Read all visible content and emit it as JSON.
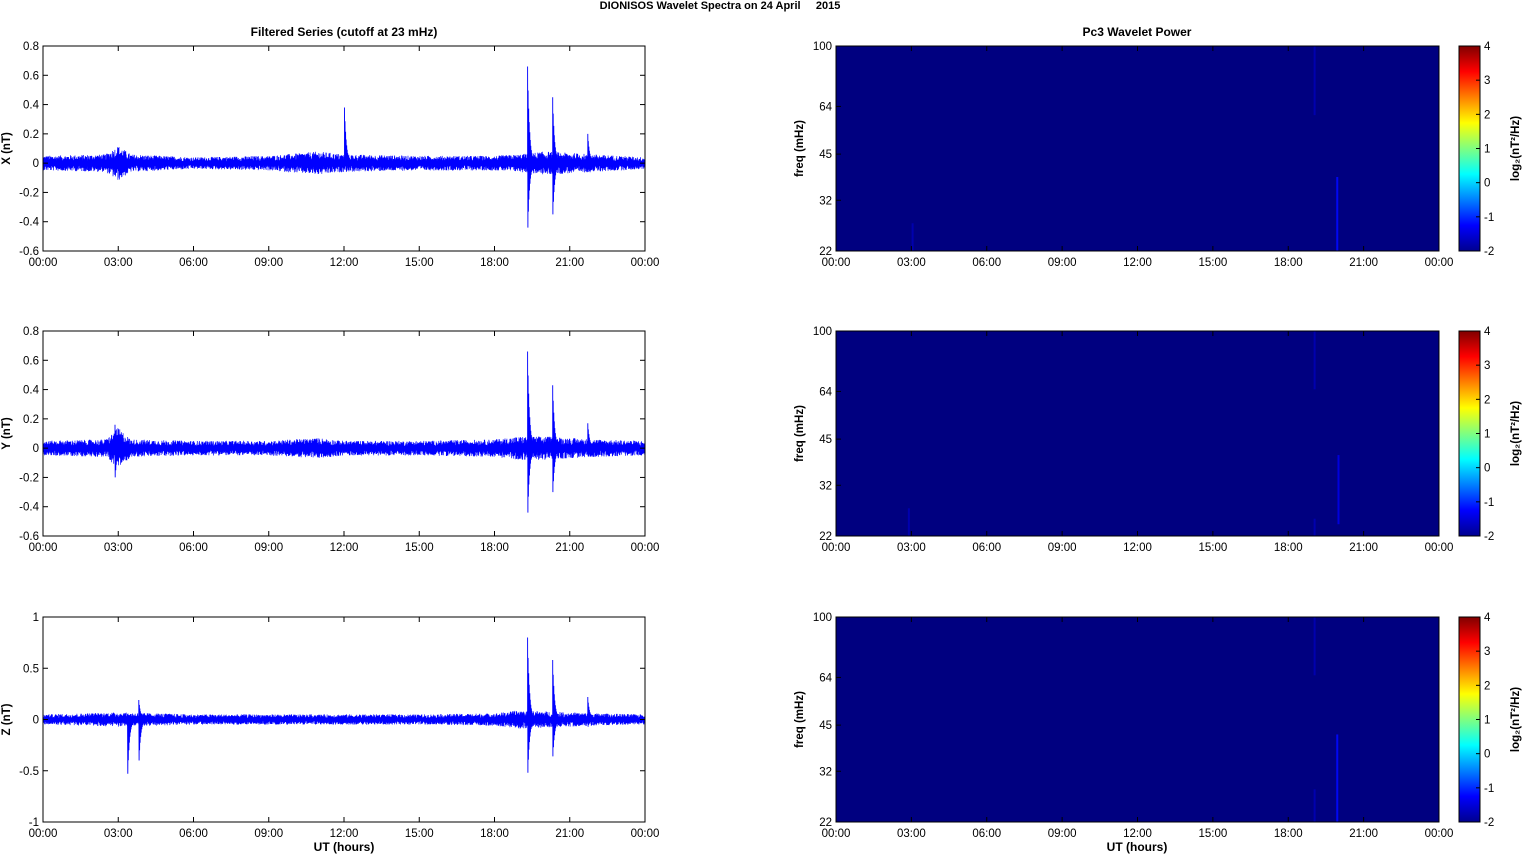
{
  "figure": {
    "title": "DIONISOS Wavelet Spectra on 24 April     2015",
    "left_title": "Filtered Series (cutoff at 23 mHz)",
    "right_title": "Pc3 Wavelet Power",
    "xlabel": "UT (hours)"
  },
  "chart_data": [
    {
      "type": "line",
      "panel": "series-x",
      "ylabel": "X (nT)",
      "xlim": [
        0,
        24
      ],
      "ylim": [
        -0.6,
        0.8
      ],
      "x_ticks": [
        "00:00",
        "03:00",
        "06:00",
        "09:00",
        "12:00",
        "15:00",
        "18:00",
        "21:00",
        "00:00"
      ],
      "y_ticks": [
        "0.8",
        "0.6",
        "0.4",
        "0.2",
        "0",
        "-0.2",
        "-0.4",
        "-0.6"
      ],
      "color": "#0000ff",
      "noise_envelope": [
        [
          0,
          0.05
        ],
        [
          2.5,
          0.06
        ],
        [
          3,
          0.12
        ],
        [
          3.5,
          0.06
        ],
        [
          6,
          0.04
        ],
        [
          9,
          0.05
        ],
        [
          11,
          0.08
        ],
        [
          12,
          0.06
        ],
        [
          15,
          0.05
        ],
        [
          18,
          0.05
        ],
        [
          19,
          0.06
        ],
        [
          20,
          0.08
        ],
        [
          22,
          0.06
        ],
        [
          24,
          0.04
        ]
      ],
      "spikes": [
        {
          "x": 12.1,
          "max": 0.38,
          "min": -0.02
        },
        {
          "x": 19.4,
          "max": 0.66,
          "min": -0.44
        },
        {
          "x": 20.4,
          "max": 0.45,
          "min": -0.35
        },
        {
          "x": 21.8,
          "max": 0.2,
          "min": -0.06
        }
      ]
    },
    {
      "type": "line",
      "panel": "series-y",
      "ylabel": "Y (nT)",
      "xlim": [
        0,
        24
      ],
      "ylim": [
        -0.6,
        0.8
      ],
      "x_ticks": [
        "00:00",
        "03:00",
        "06:00",
        "09:00",
        "12:00",
        "15:00",
        "18:00",
        "21:00",
        "00:00"
      ],
      "y_ticks": [
        "0.8",
        "0.6",
        "0.4",
        "0.2",
        "0",
        "-0.2",
        "-0.4",
        "-0.6"
      ],
      "color": "#0000ff",
      "noise_envelope": [
        [
          0,
          0.05
        ],
        [
          2.5,
          0.06
        ],
        [
          3,
          0.14
        ],
        [
          3.5,
          0.06
        ],
        [
          6,
          0.05
        ],
        [
          9,
          0.05
        ],
        [
          11,
          0.07
        ],
        [
          12,
          0.05
        ],
        [
          15,
          0.05
        ],
        [
          18,
          0.06
        ],
        [
          19,
          0.08
        ],
        [
          20,
          0.08
        ],
        [
          22,
          0.06
        ],
        [
          24,
          0.05
        ]
      ],
      "spikes": [
        {
          "x": 2.95,
          "max": 0.16,
          "min": -0.2
        },
        {
          "x": 19.4,
          "max": 0.66,
          "min": -0.44
        },
        {
          "x": 20.4,
          "max": 0.43,
          "min": -0.3
        },
        {
          "x": 21.8,
          "max": 0.17,
          "min": -0.05
        }
      ]
    },
    {
      "type": "line",
      "panel": "series-z",
      "ylabel": "Z (nT)",
      "xlim": [
        0,
        24
      ],
      "ylim": [
        -1,
        1
      ],
      "x_ticks": [
        "00:00",
        "03:00",
        "06:00",
        "09:00",
        "12:00",
        "15:00",
        "18:00",
        "21:00",
        "00:00"
      ],
      "y_ticks": [
        "1",
        "0.5",
        "0",
        "-0.5",
        "-1"
      ],
      "color": "#0000ff",
      "noise_envelope": [
        [
          0,
          0.05
        ],
        [
          3,
          0.07
        ],
        [
          6,
          0.05
        ],
        [
          9,
          0.05
        ],
        [
          12,
          0.05
        ],
        [
          15,
          0.05
        ],
        [
          18,
          0.06
        ],
        [
          19,
          0.09
        ],
        [
          20,
          0.08
        ],
        [
          22,
          0.06
        ],
        [
          24,
          0.05
        ]
      ],
      "spikes": [
        {
          "x": 3.45,
          "max": 0.05,
          "min": -0.53
        },
        {
          "x": 3.9,
          "max": 0.19,
          "min": -0.4
        },
        {
          "x": 19.4,
          "max": 0.8,
          "min": -0.52
        },
        {
          "x": 20.4,
          "max": 0.58,
          "min": -0.36
        },
        {
          "x": 21.8,
          "max": 0.22,
          "min": -0.07
        }
      ]
    },
    {
      "type": "heatmap",
      "panel": "wavelet-x",
      "ylabel": "freq (mHz)",
      "colorbar_label": "log₂(nT²/Hz)",
      "xlim": [
        0,
        24
      ],
      "ylim": [
        22,
        100
      ],
      "y_scale": "log",
      "x_ticks": [
        "00:00",
        "03:00",
        "06:00",
        "09:00",
        "12:00",
        "15:00",
        "18:00",
        "21:00",
        "00:00"
      ],
      "y_ticks": [
        100,
        64,
        45,
        32,
        22
      ],
      "colorbar_ticks": [
        "4",
        "3",
        "2",
        "1",
        "0",
        "-1",
        "-2"
      ],
      "clim": [
        -2,
        4
      ],
      "background_value": -2,
      "streaks": [
        {
          "x": 3.05,
          "fmin": 22,
          "fmax": 27,
          "value": -1.7
        },
        {
          "x": 19.05,
          "fmin": 60,
          "fmax": 100,
          "value": -1.7
        },
        {
          "x": 19.95,
          "fmin": 22,
          "fmax": 38,
          "value": -1.2
        }
      ]
    },
    {
      "type": "heatmap",
      "panel": "wavelet-y",
      "ylabel": "freq (mHz)",
      "colorbar_label": "log₂(nT²/Hz)",
      "xlim": [
        0,
        24
      ],
      "ylim": [
        22,
        100
      ],
      "y_scale": "log",
      "x_ticks": [
        "00:00",
        "03:00",
        "06:00",
        "09:00",
        "12:00",
        "15:00",
        "18:00",
        "21:00",
        "00:00"
      ],
      "y_ticks": [
        100,
        64,
        45,
        32,
        22
      ],
      "colorbar_ticks": [
        "4",
        "3",
        "2",
        "1",
        "0",
        "-1",
        "-2"
      ],
      "clim": [
        -2,
        4
      ],
      "background_value": -2,
      "streaks": [
        {
          "x": 2.9,
          "fmin": 22,
          "fmax": 27,
          "value": -1.7
        },
        {
          "x": 19.05,
          "fmin": 65,
          "fmax": 100,
          "value": -1.7
        },
        {
          "x": 19.05,
          "fmin": 22,
          "fmax": 25,
          "value": -1.7
        },
        {
          "x": 20.0,
          "fmin": 24,
          "fmax": 40,
          "value": -1.4
        }
      ]
    },
    {
      "type": "heatmap",
      "panel": "wavelet-z",
      "ylabel": "freq (mHz)",
      "colorbar_label": "log₂(nT²/Hz)",
      "xlim": [
        0,
        24
      ],
      "ylim": [
        22,
        100
      ],
      "y_scale": "log",
      "x_ticks": [
        "00:00",
        "03:00",
        "06:00",
        "09:00",
        "12:00",
        "15:00",
        "18:00",
        "21:00",
        "00:00"
      ],
      "y_ticks": [
        100,
        64,
        45,
        32,
        22
      ],
      "colorbar_ticks": [
        "4",
        "3",
        "2",
        "1",
        "0",
        "-1",
        "-2"
      ],
      "clim": [
        -2,
        4
      ],
      "background_value": -2,
      "streaks": [
        {
          "x": 19.05,
          "fmin": 65,
          "fmax": 100,
          "value": -1.7
        },
        {
          "x": 19.05,
          "fmin": 22,
          "fmax": 28,
          "value": -1.7
        },
        {
          "x": 19.95,
          "fmin": 22,
          "fmax": 42,
          "value": -1.2
        }
      ]
    }
  ]
}
